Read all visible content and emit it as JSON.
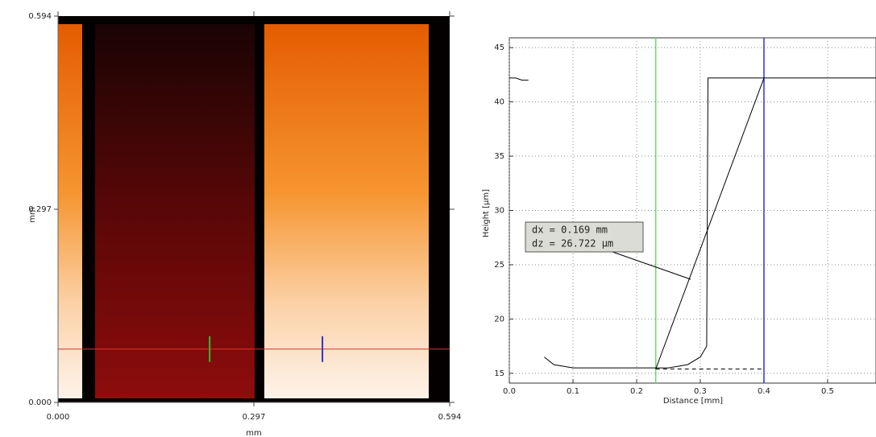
{
  "chart_data": [
    {
      "type": "image",
      "xlabel": "mm",
      "ylabel": "mm",
      "xlim": [
        0,
        0.594
      ],
      "ylim": [
        0,
        0.594
      ],
      "xticks": [
        {
          "value": 0,
          "label": "0.000"
        },
        0.297,
        0.594
      ],
      "yticks": [
        {
          "value": 0,
          "label": "0.000"
        },
        0.297,
        0.594
      ],
      "profile_y": 0.082,
      "profile_color": "#e03030",
      "cursors": [
        {
          "value": 0.23,
          "color": "#33bb33"
        },
        {
          "value": 0.401,
          "color": "#3333cc"
        }
      ]
    },
    {
      "type": "line",
      "xlabel": "Distance [mm]",
      "ylabel": "Height [μm]",
      "xlim": [
        0,
        0.576
      ],
      "ylim": [
        14.1,
        45.9
      ],
      "xticks": [
        {
          "value": 0,
          "label": "0.0"
        },
        0.1,
        0.2,
        0.3,
        0.4,
        0.5
      ],
      "yticks": [
        15,
        20,
        25,
        30,
        35,
        40,
        45
      ],
      "grid": true,
      "series": [
        {
          "color": "#000000",
          "dash": false,
          "x": [
            0,
            0.01,
            0.02,
            0.03,
            0.035,
            0.055,
            0.07,
            0.1,
            0.15,
            0.2,
            0.25,
            0.28,
            0.3,
            0.31,
            0.312,
            0.315,
            0.4,
            0.45,
            0.47,
            0.5,
            0.576
          ],
          "values": [
            42.2,
            42.2,
            42.0,
            42.0,
            null,
            16.5,
            15.8,
            15.5,
            15.5,
            15.5,
            15.5,
            15.8,
            16.5,
            17.5,
            42.2,
            42.2,
            42.2,
            42.2,
            42.2,
            42.2,
            42.2
          ]
        },
        {
          "color": "#000000",
          "dash": false,
          "x": [
            0.23,
            0.4
          ],
          "values": [
            15.4,
            42.2
          ]
        },
        {
          "color": "#000000",
          "dash": true,
          "x": [
            0.23,
            0.4
          ],
          "values": [
            15.4,
            15.4
          ]
        }
      ],
      "cursors": [
        {
          "value": 0.23,
          "color": "#66dd66"
        },
        {
          "value": 0.4,
          "color": "#3333cc"
        }
      ],
      "annotation": [
        "dx = 0.169 mm",
        "dz = 26.722 μm"
      ]
    }
  ]
}
